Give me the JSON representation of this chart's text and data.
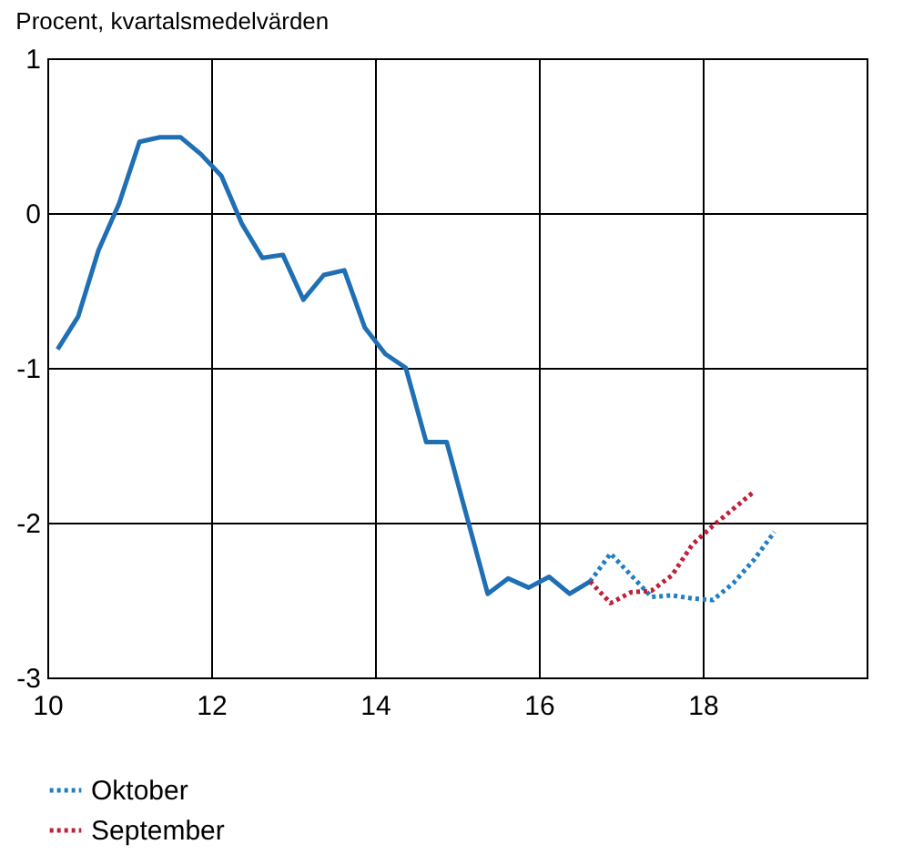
{
  "chart_data": {
    "type": "line",
    "ylabel": "Procent, kvartalsmedelvärden",
    "xlim": [
      10,
      20
    ],
    "xticks": [
      10,
      12,
      14,
      16,
      18
    ],
    "ylim": [
      -3,
      1
    ],
    "yticks": [
      -3,
      -2,
      -1,
      0,
      1
    ],
    "grid": true,
    "legend": "bottom left",
    "series": [
      {
        "color": "#1f6fb4",
        "line_style": "solid",
        "x": [
          10.125,
          10.375,
          10.625,
          10.875,
          11.125,
          11.375,
          11.625,
          11.875,
          12.125,
          12.375,
          12.625,
          12.875,
          13.125,
          13.375,
          13.625,
          13.875,
          14.125,
          14.375,
          14.625,
          14.875,
          15.125,
          15.375,
          15.625,
          15.875,
          16.125,
          16.375,
          16.625
        ],
        "values": [
          -0.88,
          -0.67,
          -0.24,
          0.06,
          0.46,
          0.49,
          0.49,
          0.38,
          0.24,
          -0.07,
          -0.29,
          -0.27,
          -0.56,
          -0.4,
          -0.37,
          -0.74,
          -0.91,
          -1.0,
          -1.48,
          -1.48,
          -1.97,
          -2.46,
          -2.36,
          -2.42,
          -2.35,
          -2.46,
          -2.38
        ]
      },
      {
        "name": "Oktober",
        "color": "#1f7ec4",
        "line_style": "dotted",
        "x": [
          16.625,
          16.875,
          17.125,
          17.375,
          17.625,
          17.875,
          18.125,
          18.375,
          18.625,
          18.875
        ],
        "values": [
          -2.38,
          -2.2,
          -2.34,
          -2.48,
          -2.47,
          -2.49,
          -2.5,
          -2.39,
          -2.24,
          -2.06
        ]
      },
      {
        "name": "September",
        "color": "#c0203a",
        "line_style": "dotted",
        "x": [
          16.625,
          16.875,
          17.125,
          17.375,
          17.625,
          17.875,
          18.125,
          18.375,
          18.625
        ],
        "values": [
          -2.38,
          -2.52,
          -2.45,
          -2.44,
          -2.34,
          -2.14,
          -2.02,
          -1.91,
          -1.8
        ]
      }
    ]
  }
}
